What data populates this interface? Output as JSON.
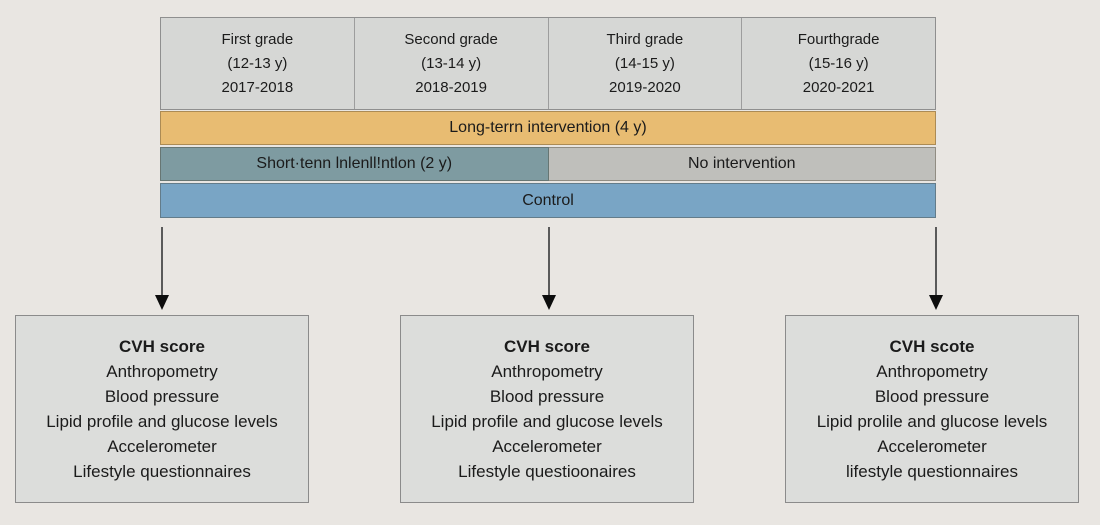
{
  "timeline": {
    "grades": [
      {
        "line1": "First grade",
        "line2": "(12-13 y)",
        "line3": "2017-2018"
      },
      {
        "line1": "Second grade",
        "line2": "(13-14 y)",
        "line3": "2018-2019"
      },
      {
        "line1": "Third grade",
        "line2": "(14-15 y)",
        "line3": "2019-2020"
      },
      {
        "line1": "Fourthgrade",
        "line2": "(15-16 y)",
        "line3": "2020-2021"
      }
    ],
    "bars": {
      "long_term": {
        "label": "Long-terrn intervention (4 y)",
        "color": "#e8bc72"
      },
      "short_term": {
        "label": "Short·tenn lnlenll!ntlon (2 y)",
        "color": "#7e9ba1"
      },
      "no_intervention": {
        "label": "No intervention",
        "color": "#bfbfbb"
      },
      "control": {
        "label": "Control",
        "color": "#79a5c5"
      }
    },
    "header_bg": "#d6d7d5"
  },
  "assessments": [
    {
      "title": "CVH score",
      "items": [
        "Anthropometry",
        "Blood pressure",
        "Lipid profile and glucose levels",
        "Accelerometer",
        "Lifestyle questionnaires"
      ]
    },
    {
      "title": "CVH score",
      "items": [
        "Anthropometry",
        "Blood pressure",
        "Lipid profile and glucose levels",
        "Accelerometer",
        "Lifestyle questioonaires"
      ]
    },
    {
      "title": "CVH scote",
      "items": [
        "Anthropometry",
        "Blood pressure",
        "Lipid prolile and glucose levels",
        "Accelerometer",
        "lifestyle questionnaires"
      ]
    }
  ]
}
